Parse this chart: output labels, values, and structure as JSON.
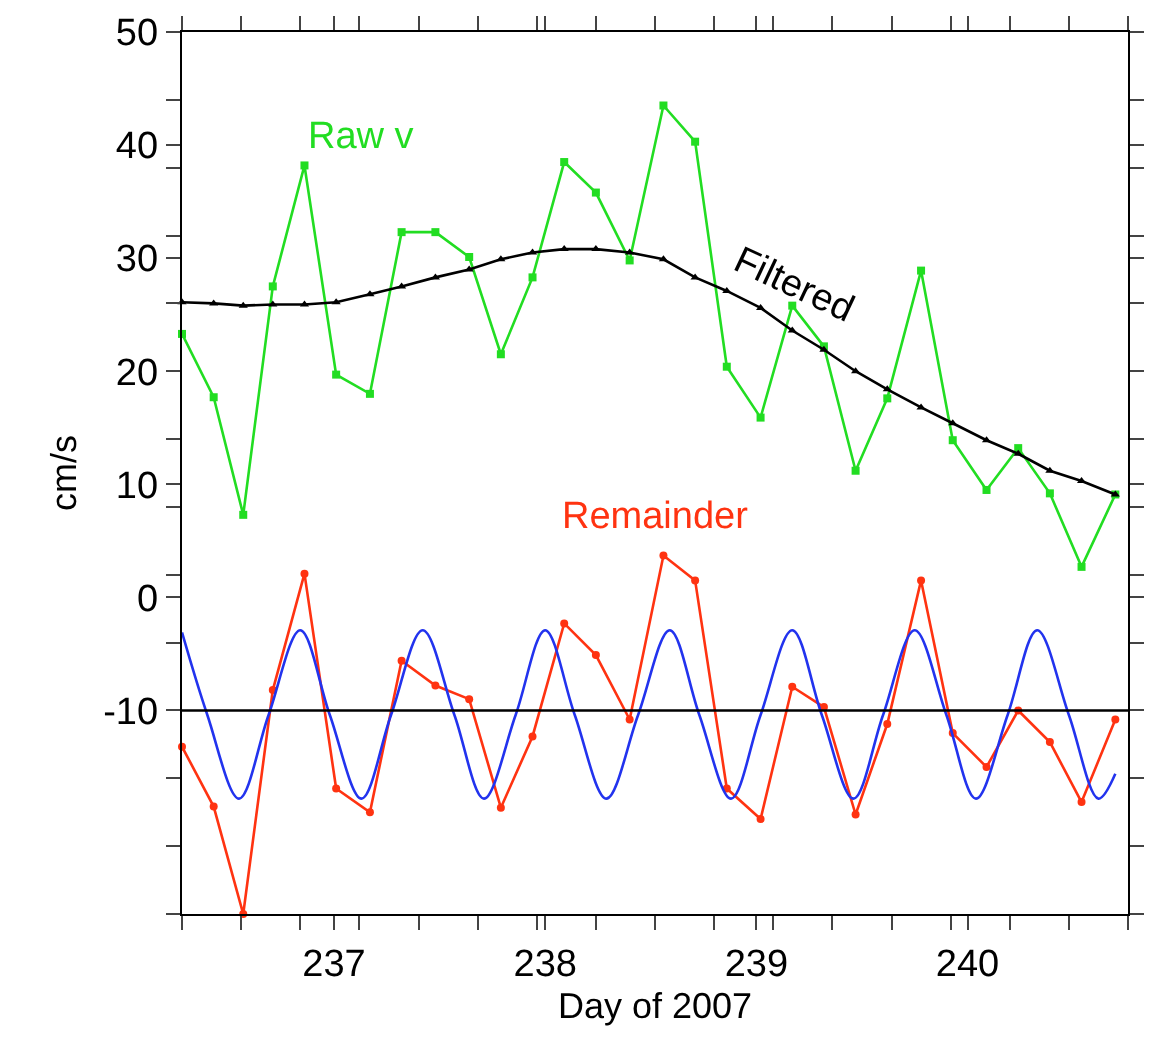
{
  "chart_data": {
    "type": "line",
    "xlabel": "Day of 2007",
    "ylabel": "cm/s",
    "x": [
      236.28,
      236.43,
      236.57,
      236.71,
      236.86,
      237.01,
      237.17,
      237.32,
      237.48,
      237.64,
      237.79,
      237.94,
      238.09,
      238.24,
      238.4,
      238.56,
      238.71,
      238.86,
      239.02,
      239.17,
      239.32,
      239.47,
      239.62,
      239.78,
      239.93,
      240.09,
      240.24,
      240.39,
      240.54,
      240.7
    ],
    "series": [
      {
        "name": "Raw v",
        "color": "#22dd22",
        "marker": "square",
        "values": [
          23.3,
          17.7,
          7.3,
          27.5,
          38.2,
          19.7,
          18.0,
          32.3,
          32.3,
          30.1,
          21.5,
          28.3,
          38.5,
          35.8,
          29.8,
          43.5,
          40.3,
          20.4,
          15.9,
          25.8,
          22.2,
          11.2,
          17.6,
          28.9,
          13.9,
          9.5,
          13.2,
          9.2,
          2.7,
          9.1
        ]
      },
      {
        "name": "Filtered",
        "color": "#000000",
        "marker": "triangle",
        "values": [
          26.1,
          26.0,
          25.8,
          25.9,
          25.9,
          26.1,
          26.8,
          27.5,
          28.3,
          29.0,
          29.9,
          30.5,
          30.8,
          30.8,
          30.5,
          29.9,
          28.3,
          27.1,
          25.6,
          23.6,
          21.9,
          20.0,
          18.4,
          16.8,
          15.4,
          13.9,
          12.7,
          11.2,
          10.3,
          9.1
        ]
      },
      {
        "name": "Remainder",
        "color": "#ff3311",
        "marker": "circle",
        "values": [
          -13.2,
          -18.5,
          -28.0,
          -8.2,
          2.1,
          -16.9,
          -19.0,
          -5.6,
          -7.8,
          -9.0,
          -18.6,
          -12.3,
          -2.3,
          -5.1,
          -10.8,
          3.7,
          1.5,
          -16.9,
          -19.6,
          -7.9,
          -9.7,
          -19.2,
          -11.2,
          1.5,
          -12.0,
          -15.0,
          -10.0,
          -12.8,
          -18.1,
          -10.8
        ]
      },
      {
        "color": "#2233ee",
        "marker": "none",
        "x": [
          236.28,
          236.4,
          236.55,
          236.69,
          236.84,
          236.98,
          237.13,
          237.27,
          237.42,
          237.57,
          237.71,
          237.86,
          238.0,
          238.14,
          238.29,
          238.44,
          238.59,
          238.73,
          238.88,
          239.02,
          239.17,
          239.31,
          239.46,
          239.6,
          239.75,
          239.9,
          240.04,
          240.19,
          240.33,
          240.48,
          240.62,
          240.7
        ],
        "values": [
          -3.1,
          -10.4,
          -17.8,
          -10.4,
          -2.9,
          -10.4,
          -17.8,
          -10.4,
          -2.9,
          -10.4,
          -17.8,
          -10.4,
          -2.9,
          -10.4,
          -17.8,
          -10.4,
          -2.9,
          -10.4,
          -17.8,
          -10.4,
          -2.9,
          -10.4,
          -17.8,
          -10.4,
          -2.9,
          -10.4,
          -17.8,
          -10.4,
          -2.9,
          -10.4,
          -17.8,
          -15.6
        ]
      }
    ],
    "ref_lines": [
      {
        "axis": "y",
        "value": -10,
        "color": "#000000"
      }
    ],
    "xlim": [
      236.28,
      240.76
    ],
    "xticks": [
      {
        "value": 236.28,
        "label": null
      },
      {
        "value": 236.56,
        "label": null
      },
      {
        "value": 236.84,
        "label": null
      },
      237,
      {
        "value": 237.12,
        "label": null
      },
      {
        "value": 237.4,
        "label": null
      },
      {
        "value": 237.68,
        "label": null
      },
      {
        "value": 237.96,
        "label": null
      },
      238,
      {
        "value": 238.24,
        "label": null
      },
      {
        "value": 238.52,
        "label": null
      },
      {
        "value": 238.8,
        "label": null
      },
      239,
      {
        "value": 239.08,
        "label": null
      },
      {
        "value": 239.36,
        "label": null
      },
      {
        "value": 239.64,
        "label": null
      },
      {
        "value": 239.92,
        "label": null
      },
      240,
      {
        "value": 240.2,
        "label": null
      },
      {
        "value": 240.48,
        "label": null
      },
      {
        "value": 240.76,
        "label": null
      }
    ],
    "ylim": [
      -28,
      50
    ],
    "yticks": [
      50,
      {
        "value": 44,
        "label": null
      },
      40,
      {
        "value": 38,
        "label": null
      },
      {
        "value": 32,
        "label": null
      },
      30,
      {
        "value": 26,
        "label": null
      },
      20,
      {
        "value": 14,
        "label": null
      },
      10,
      {
        "value": 8,
        "label": null
      },
      {
        "value": 2,
        "label": null
      },
      0,
      {
        "value": -4,
        "label": null
      },
      -10,
      {
        "value": -16,
        "label": null
      },
      {
        "value": -22,
        "label": null
      },
      {
        "value": -28,
        "label": null
      }
    ],
    "legend": false
  }
}
